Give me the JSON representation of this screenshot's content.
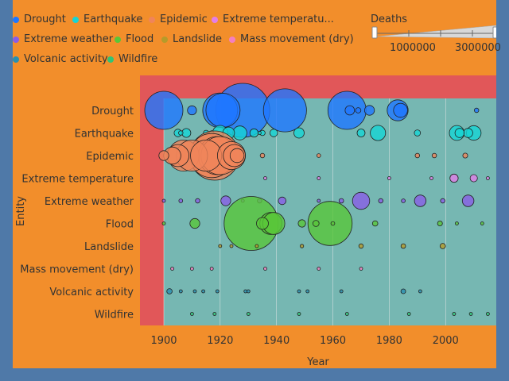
{
  "chart_data": {
    "type": "scatter",
    "xlabel": "Year",
    "ylabel": "Entity",
    "xlim": [
      1892,
      2018
    ],
    "x_ticks": [
      "1900",
      "1920",
      "1940",
      "1960",
      "1980",
      "2000"
    ],
    "categories": [
      "Drought",
      "Earthquake",
      "Epidemic",
      "Extreme temperature",
      "Extreme weather",
      "Flood",
      "Landslide",
      "Mass movement (dry)",
      "Volcanic activity",
      "Wildfire"
    ],
    "legend": [
      {
        "label": "Drought",
        "color": "#1f77ff"
      },
      {
        "label": "Earthquake",
        "color": "#17d4d4"
      },
      {
        "label": "Epidemic",
        "color": "#f0845a"
      },
      {
        "label": "Extreme temperatu...",
        "color": "#e47ee8"
      },
      {
        "label": "Extreme weather",
        "color": "#8a5ee6"
      },
      {
        "label": "Flood",
        "color": "#59c639"
      },
      {
        "label": "Landslide",
        "color": "#b59b2a"
      },
      {
        "label": "Mass movement (dry)",
        "color": "#f47fc0"
      },
      {
        "label": "Volcanic activity",
        "color": "#2a8fb0"
      },
      {
        "label": "Wildfire",
        "color": "#2fc476"
      }
    ],
    "size_legend": {
      "title": "Deaths",
      "ticks": [
        "1000000",
        "3000000"
      ]
    },
    "series": [
      {
        "category": "Drought",
        "color": "#1f77ff",
        "points": [
          [
            1900,
            1500000
          ],
          [
            1910,
            85000
          ],
          [
            1920,
            1250000
          ],
          [
            1921,
            1200000
          ],
          [
            1928,
            3000000
          ],
          [
            1943,
            1900000
          ],
          [
            1965,
            1500000
          ],
          [
            1966,
            90000
          ],
          [
            1969,
            30000
          ],
          [
            1973,
            100000
          ],
          [
            1983,
            450000
          ],
          [
            1984,
            200000
          ],
          [
            2011,
            20000
          ]
        ]
      },
      {
        "category": "Earthquake",
        "color": "#17d4d4",
        "points": [
          [
            1905,
            60000
          ],
          [
            1906,
            20000
          ],
          [
            1908,
            82000
          ],
          [
            1915,
            30000
          ],
          [
            1917,
            20000
          ],
          [
            1920,
            235000
          ],
          [
            1923,
            143000
          ],
          [
            1927,
            200000
          ],
          [
            1932,
            70000
          ],
          [
            1934,
            10000
          ],
          [
            1935,
            30000
          ],
          [
            1939,
            60000
          ],
          [
            1948,
            110000
          ],
          [
            1970,
            66000
          ],
          [
            1976,
            240000
          ],
          [
            1990,
            40000
          ],
          [
            2004,
            230000
          ],
          [
            2005,
            86000
          ],
          [
            2008,
            87000
          ],
          [
            2010,
            220000
          ]
        ]
      },
      {
        "category": "Epidemic",
        "color": "#f0845a",
        "points": [
          [
            1900,
            100000
          ],
          [
            1903,
            300000
          ],
          [
            1905,
            500000
          ],
          [
            1907,
            1000000
          ],
          [
            1910,
            1000000
          ],
          [
            1915,
            1000000
          ],
          [
            1917,
            2000000
          ],
          [
            1918,
            2500000
          ],
          [
            1919,
            1500000
          ],
          [
            1920,
            1500000
          ],
          [
            1924,
            800000
          ],
          [
            1925,
            500000
          ],
          [
            1926,
            200000
          ],
          [
            1935,
            20000
          ],
          [
            1955,
            15000
          ],
          [
            1990,
            20000
          ],
          [
            1996,
            20000
          ],
          [
            2007,
            25000
          ]
        ]
      },
      {
        "category": "Extreme temperature",
        "color": "#e47ee8",
        "points": [
          [
            1936,
            5000
          ],
          [
            1955,
            5000
          ],
          [
            1980,
            10000
          ],
          [
            1995,
            5000
          ],
          [
            2003,
            70000
          ],
          [
            2010,
            55000
          ],
          [
            2015,
            10000
          ]
        ]
      },
      {
        "category": "Extreme weather",
        "color": "#8a5ee6",
        "points": [
          [
            1900,
            10000
          ],
          [
            1906,
            15000
          ],
          [
            1912,
            20000
          ],
          [
            1922,
            100000
          ],
          [
            1928,
            10000
          ],
          [
            1934,
            20000
          ],
          [
            1942,
            61000
          ],
          [
            1955,
            10000
          ],
          [
            1963,
            22000
          ],
          [
            1970,
            300000
          ],
          [
            1977,
            20000
          ],
          [
            1985,
            15000
          ],
          [
            1991,
            140000
          ],
          [
            1999,
            20000
          ],
          [
            2008,
            140000
          ]
        ]
      },
      {
        "category": "Flood",
        "color": "#59c639",
        "points": [
          [
            1900,
            3000
          ],
          [
            1911,
            100000
          ],
          [
            1931,
            3000000
          ],
          [
            1935,
            145000
          ],
          [
            1938,
            500000
          ],
          [
            1939,
            500000
          ],
          [
            1949,
            57000
          ],
          [
            1954,
            40000
          ],
          [
            1959,
            2000000
          ],
          [
            1960,
            15000
          ],
          [
            1975,
            30000
          ],
          [
            1998,
            25000
          ],
          [
            2004,
            10000
          ],
          [
            2013,
            8000
          ]
        ]
      },
      {
        "category": "Landslide",
        "color": "#b59b2a",
        "points": [
          [
            1920,
            10000
          ],
          [
            1924,
            2000
          ],
          [
            1933,
            3000
          ],
          [
            1949,
            12000
          ],
          [
            1970,
            20000
          ],
          [
            1985,
            22000
          ],
          [
            1999,
            30000
          ]
        ]
      },
      {
        "category": "Mass movement (dry)",
        "color": "#f47fc0",
        "points": [
          [
            1903,
            500
          ],
          [
            1910,
            400
          ],
          [
            1917,
            2000
          ],
          [
            1936,
            1000
          ],
          [
            1955,
            200
          ],
          [
            1970,
            500
          ]
        ]
      },
      {
        "category": "Volcanic activity",
        "color": "#2a8fb0",
        "points": [
          [
            1902,
            30000
          ],
          [
            1906,
            1000
          ],
          [
            1911,
            2000
          ],
          [
            1914,
            1000
          ],
          [
            1919,
            5000
          ],
          [
            1929,
            500
          ],
          [
            1930,
            1300
          ],
          [
            1948,
            2000
          ],
          [
            1951,
            3000
          ],
          [
            1963,
            1000
          ],
          [
            1985,
            23000
          ],
          [
            1991,
            1000
          ]
        ]
      },
      {
        "category": "Wildfire",
        "color": "#2fc476",
        "points": [
          [
            1910,
            500
          ],
          [
            1918,
            1000
          ],
          [
            1930,
            300
          ],
          [
            1948,
            500
          ],
          [
            1965,
            200
          ],
          [
            1987,
            200
          ],
          [
            2003,
            150
          ],
          [
            2009,
            200
          ],
          [
            2015,
            200
          ]
        ]
      }
    ]
  }
}
